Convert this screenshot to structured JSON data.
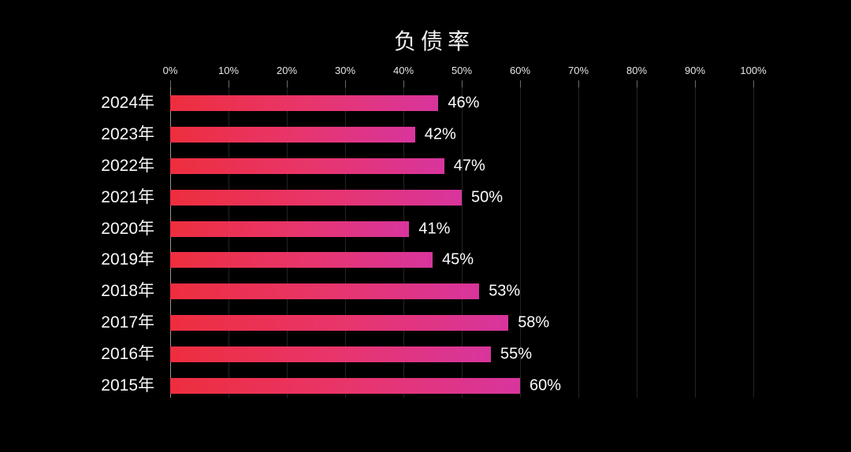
{
  "colors": {
    "background": "#000000",
    "title_text": "#f2f2f2",
    "category_text": "#fafafa",
    "value_text": "#ffffff",
    "axis_tick_text": "#e6e6e6",
    "gridline": "#242424",
    "axis_line": "#969696",
    "tick_mark": "#6b6b6b",
    "bar_gradient_start": "#ee2e3e",
    "bar_gradient_mid": "#e8356a",
    "bar_gradient_end": "#d8359d"
  },
  "chart_data": {
    "type": "bar",
    "orientation": "horizontal",
    "title": "负债率",
    "categories": [
      "2024年",
      "2023年",
      "2022年",
      "2021年",
      "2020年",
      "2019年",
      "2018年",
      "2017年",
      "2016年",
      "2015年"
    ],
    "values": [
      46,
      42,
      47,
      50,
      41,
      45,
      53,
      58,
      55,
      60
    ],
    "value_labels": [
      "46%",
      "42%",
      "47%",
      "50%",
      "41%",
      "45%",
      "53%",
      "58%",
      "55%",
      "60%"
    ],
    "x_axis": {
      "min": 0,
      "max": 100,
      "ticks": [
        "0%",
        "10%",
        "20%",
        "30%",
        "40%",
        "50%",
        "60%",
        "70%",
        "80%",
        "90%",
        "100%"
      ],
      "position": "top"
    },
    "grid": true,
    "legend": false
  }
}
